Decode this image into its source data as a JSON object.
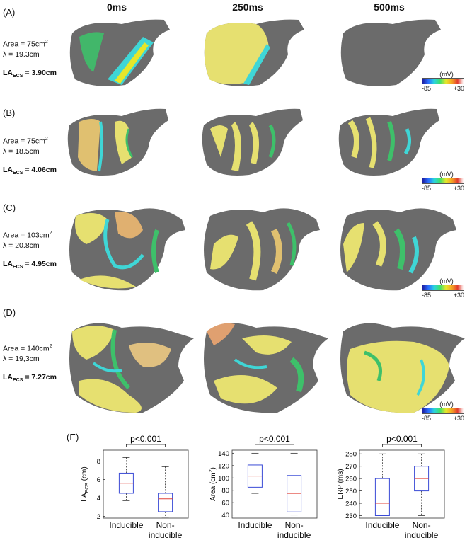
{
  "column_headers": [
    "0ms",
    "250ms",
    "500ms"
  ],
  "panels": [
    {
      "label": "(A)",
      "area": "Area = 75cm",
      "area_sup": "2",
      "lambda": "λ = 19.3cm",
      "la_main": "LA",
      "la_sub": "ECS",
      "la_val": " = 3.90cm"
    },
    {
      "label": "(B)",
      "area": "Area = 75cm",
      "area_sup": "2",
      "lambda": "λ = 18.5cm",
      "la_main": "LA",
      "la_sub": "ECS",
      "la_val": " = 4.06cm"
    },
    {
      "label": "(C)",
      "area": "Area = 103cm",
      "area_sup": "2",
      "lambda": "λ = 20.8cm",
      "la_main": "LA",
      "la_sub": "ECS",
      "la_val": " = 4.95cm"
    },
    {
      "label": "(D)",
      "area": "Area = 140cm",
      "area_sup": "2",
      "lambda": "λ = 19,3cm",
      "la_main": "LA",
      "la_sub": "ECS",
      "la_val": " = 7.27cm"
    }
  ],
  "colorbar": {
    "unit": "(mV)",
    "min_label": "-85",
    "max_label": "+30"
  },
  "panel_e_label": "(E)",
  "chart_data": [
    {
      "type": "box",
      "title": "p<0.001",
      "ylabel_main": "LA",
      "ylabel_sub": "ECS",
      "ylabel_unit": " (cm)",
      "ylim": [
        1.8,
        9.2
      ],
      "yticks": [
        2,
        4,
        6,
        8
      ],
      "categories": [
        "Inducible",
        "Non-inducible"
      ],
      "xtick_lines": [
        [
          "Inducible"
        ],
        [
          "Non-",
          "inducible"
        ]
      ],
      "boxes": [
        {
          "min": 3.7,
          "q1": 4.5,
          "median": 5.6,
          "q3": 6.7,
          "max": 8.4
        },
        {
          "min": 1.9,
          "q1": 2.5,
          "median": 3.9,
          "q3": 4.5,
          "max": 7.4
        }
      ]
    },
    {
      "type": "box",
      "title": "p<0.001",
      "ylabel_main": "Area (cm",
      "ylabel_sup": "2",
      "ylabel_end": ")",
      "ylim": [
        35,
        145
      ],
      "yticks": [
        40,
        60,
        80,
        100,
        120,
        140
      ],
      "categories": [
        "Inducible",
        "Non-inducible"
      ],
      "xtick_lines": [
        [
          "Inducible"
        ],
        [
          "Non-",
          "inducible"
        ]
      ],
      "boxes": [
        {
          "min": 75,
          "q1": 85,
          "median": 103,
          "q3": 121,
          "max": 140
        },
        {
          "min": 40,
          "q1": 45,
          "median": 75,
          "q3": 104,
          "max": 140
        }
      ]
    },
    {
      "type": "box",
      "title": "p<0.001",
      "ylabel_main": "ERP (ms)",
      "ylim": [
        228,
        283
      ],
      "yticks": [
        230,
        240,
        250,
        260,
        270,
        280
      ],
      "categories": [
        "Inducible",
        "Non-inducible"
      ],
      "xtick_lines": [
        [
          "Inducible"
        ],
        [
          "Non-",
          "inducible"
        ]
      ],
      "boxes": [
        {
          "min": 230,
          "q1": 230,
          "median": 240,
          "q3": 260,
          "max": 280
        },
        {
          "min": 230,
          "q1": 250,
          "median": 260,
          "q3": 270,
          "max": 280
        }
      ]
    }
  ]
}
